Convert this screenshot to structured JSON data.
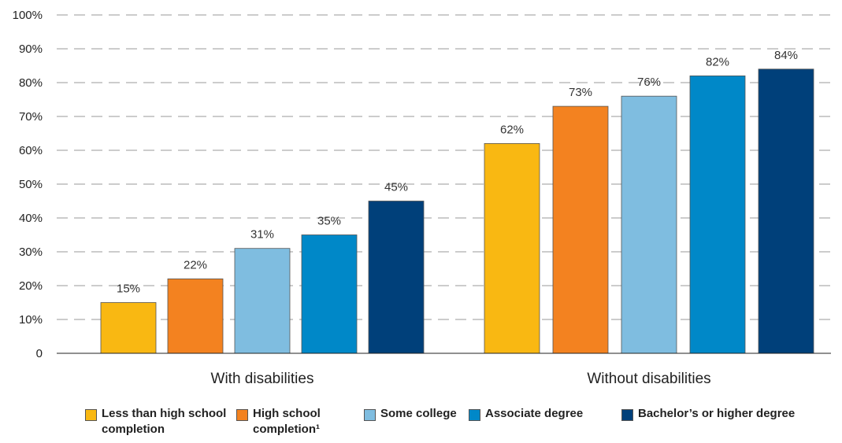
{
  "chart_data": {
    "type": "bar",
    "categories": [
      "With disabilities",
      "Without disabilities"
    ],
    "series": [
      {
        "name": "Less than high school completion",
        "color": "#F9B812",
        "values": [
          15,
          62
        ]
      },
      {
        "name": "High school completion¹",
        "color": "#F38220",
        "values": [
          22,
          73
        ]
      },
      {
        "name": "Some college",
        "color": "#7FBDE0",
        "values": [
          31,
          76
        ]
      },
      {
        "name": "Associate degree",
        "color": "#0088C8",
        "values": [
          35,
          82
        ]
      },
      {
        "name": "Bachelor’s or higher degree",
        "color": "#00407A",
        "values": [
          45,
          84
        ]
      }
    ],
    "data_labels": [
      [
        "15%",
        "22%",
        "31%",
        "35%",
        "45%"
      ],
      [
        "62%",
        "73%",
        "76%",
        "82%",
        "84%"
      ]
    ],
    "y_ticks": [
      "0",
      "10%",
      "20%",
      "30%",
      "40%",
      "50%",
      "60%",
      "70%",
      "80%",
      "90%",
      "100%"
    ],
    "ylim": [
      0,
      100
    ],
    "grid": true,
    "legend_position": "bottom"
  }
}
